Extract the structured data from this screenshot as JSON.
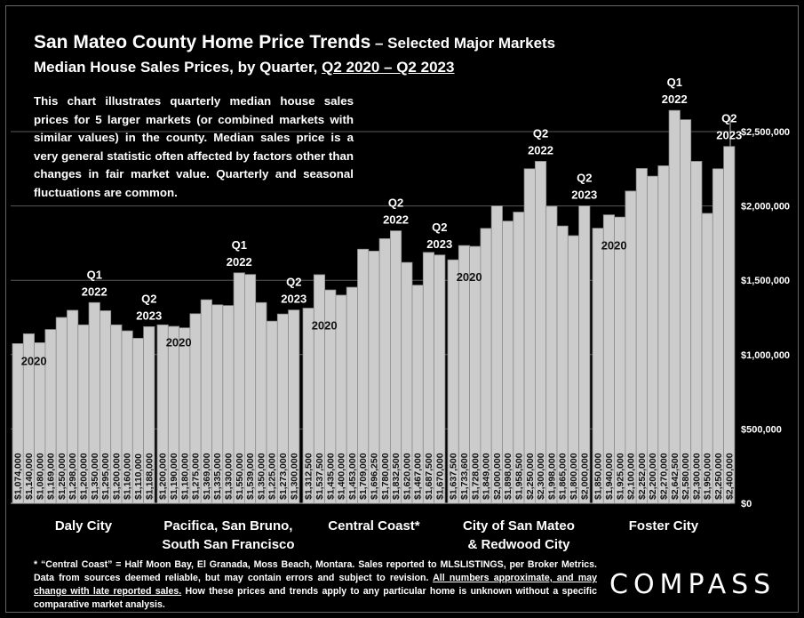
{
  "header": {
    "title_main": "San Mateo County Home Price Trends",
    "title_dash": " – ",
    "title_sub": "Selected Major Markets",
    "subtitle_prefix": "Median House Sales Prices, by Quarter, ",
    "subtitle_range": "Q2 2020 – Q2 2023"
  },
  "description": "This chart illustrates quarterly median house sales prices for 5 larger markets (or combined markets with similar values) in the county. Median sales price is a very general statistic often affected by factors other than changes in fair market value. Quarterly and seasonal fluctuations are common.",
  "footnote": {
    "text": "* “Central Coast” = Half Moon Bay, El Granada, Moss Beach, Montara. Sales reported to MLSLISTINGS, per Broker Metrics. Data from sources deemed reliable, but may contain errors and subject to revision. ",
    "underlined": "All numbers approximate, and may change with late reported sales.",
    "text_end": " How these prices and trends apply to any particular home is unknown without a specific comparative market analysis."
  },
  "logo": "COMPASS",
  "colors": {
    "background": "#000000",
    "bar": "#cccccc",
    "bar_border": "#8c8c8c",
    "text": "#ffffff",
    "grid": "#5a5a5a"
  },
  "chart_data": {
    "type": "bar",
    "ylim": [
      0,
      2600000
    ],
    "y_ticks": [
      {
        "value": 0,
        "label": "$0"
      },
      {
        "value": 500000,
        "label": "$500,000"
      },
      {
        "value": 1000000,
        "label": "$1,000,000"
      },
      {
        "value": 1500000,
        "label": "$1,500,000"
      },
      {
        "value": 2000000,
        "label": "$2,000,000"
      },
      {
        "value": 2500000,
        "label": "$2,500,000"
      }
    ],
    "groups": [
      {
        "name": "Daly City",
        "values": [
          1074000,
          1140000,
          1080000,
          1169000,
          1250000,
          1298000,
          1200000,
          1350000,
          1295000,
          1200000,
          1160000,
          1110000,
          1188000
        ],
        "labels": [
          "$1,074,000",
          "$1,140,000",
          "$1,080,000",
          "$1,169,000",
          "$1,250,000",
          "$1,298,000",
          "$1,200,000",
          "$1,350,000",
          "$1,295,000",
          "$1,200,000",
          "$1,160,000",
          "$1,110,000",
          "$1,188,000"
        ],
        "annotations": [
          {
            "index": 0,
            "text": [
              "2020"
            ],
            "pos": "above"
          },
          {
            "index": 7,
            "text": [
              "Q1",
              "2022"
            ],
            "pos": "top"
          },
          {
            "index": 12,
            "text": [
              "Q2",
              "2023"
            ],
            "pos": "top"
          }
        ]
      },
      {
        "name": "Pacifica, San Bruno, South San Francisco",
        "values": [
          1200000,
          1190000,
          1180000,
          1275000,
          1369000,
          1335000,
          1330000,
          1550000,
          1539000,
          1350000,
          1225000,
          1273000,
          1300000
        ],
        "labels": [
          "$1,200,000",
          "$1,190,000",
          "$1,180,000",
          "$1,275,000",
          "$1,369,000",
          "$1,335,000",
          "$1,330,000",
          "$1,550,000",
          "$1,539,000",
          "$1,350,000",
          "$1,225,000",
          "$1,273,000",
          "$1,300,000"
        ],
        "annotations": [
          {
            "index": 0,
            "text": [
              "2020"
            ],
            "pos": "above"
          },
          {
            "index": 7,
            "text": [
              "Q1",
              "2022"
            ],
            "pos": "top"
          },
          {
            "index": 12,
            "text": [
              "Q2",
              "2023"
            ],
            "pos": "top"
          }
        ]
      },
      {
        "name": "Central Coast*",
        "values": [
          1312500,
          1537500,
          1435000,
          1400000,
          1453000,
          1709000,
          1696250,
          1780000,
          1832500,
          1620000,
          1467000,
          1687500,
          1670000
        ],
        "labels": [
          "$1,312,500",
          "$1,537,500",
          "$1,435,000",
          "$1,400,000",
          "$1,453,000",
          "$1,709,000",
          "$1,696,250",
          "$1,780,000",
          "$1,832,500",
          "$1,620,000",
          "$1,467,000",
          "$1,687,500",
          "$1,670,000"
        ],
        "annotations": [
          {
            "index": 0,
            "text": [
              "2020"
            ],
            "pos": "above"
          },
          {
            "index": 8,
            "text": [
              "Q2",
              "2022"
            ],
            "pos": "top"
          },
          {
            "index": 12,
            "text": [
              "Q2",
              "2023"
            ],
            "pos": "top"
          }
        ]
      },
      {
        "name": "City of San Mateo & Redwood City",
        "values": [
          1637500,
          1733600,
          1728000,
          1849000,
          2000000,
          1898000,
          1958500,
          2250000,
          2300000,
          1998000,
          1865000,
          1800000,
          2000000
        ],
        "labels": [
          "$1,637,500",
          "$1,733,600",
          "$1,728,000",
          "$1,849,000",
          "$2,000,000",
          "$1,898,000",
          "$1,958,500",
          "$2,250,000",
          "$2,300,000",
          "$1,998,000",
          "$1,865,000",
          "$1,800,000",
          "$2,000,000"
        ],
        "annotations": [
          {
            "index": 0,
            "text": [
              "2020"
            ],
            "pos": "above"
          },
          {
            "index": 8,
            "text": [
              "Q2",
              "2022"
            ],
            "pos": "top"
          },
          {
            "index": 12,
            "text": [
              "Q2",
              "2023"
            ],
            "pos": "top"
          }
        ]
      },
      {
        "name": "Foster City",
        "values": [
          1850000,
          1940000,
          1925000,
          2100000,
          2252000,
          2200000,
          2270000,
          2642500,
          2580000,
          2300000,
          1950000,
          2250000,
          2400000
        ],
        "labels": [
          "$1,850,000",
          "$1,940,000",
          "$1,925,000",
          "$2,100,000",
          "$2,252,000",
          "$2,200,000",
          "$2,270,000",
          "$2,642,500",
          "$2,580,000",
          "$2,300,000",
          "$1,950,000",
          "$2,250,000",
          "$2,400,000"
        ],
        "annotations": [
          {
            "index": 0,
            "text": [
              "2020"
            ],
            "pos": "above"
          },
          {
            "index": 7,
            "text": [
              "Q1",
              "2022"
            ],
            "pos": "top"
          },
          {
            "index": 12,
            "text": [
              "Q2",
              "2023"
            ],
            "pos": "top"
          }
        ]
      }
    ],
    "group_labels": [
      [
        "Daly City"
      ],
      [
        "Pacifica, San Bruno,",
        "South San Francisco"
      ],
      [
        "Central Coast*"
      ],
      [
        "City of San Mateo",
        "& Redwood City"
      ],
      [
        "Foster City"
      ]
    ]
  }
}
